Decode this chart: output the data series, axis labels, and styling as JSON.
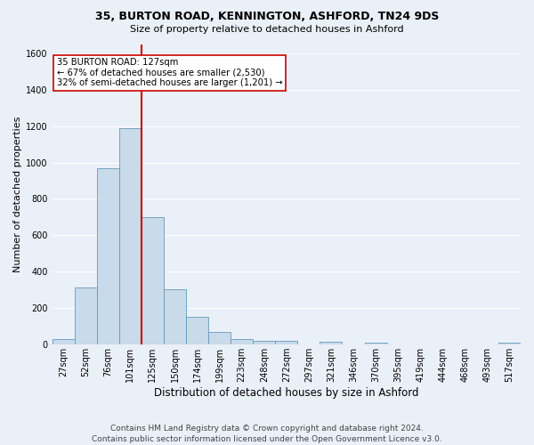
{
  "title1": "35, BURTON ROAD, KENNINGTON, ASHFORD, TN24 9DS",
  "title2": "Size of property relative to detached houses in Ashford",
  "xlabel": "Distribution of detached houses by size in Ashford",
  "ylabel": "Number of detached properties",
  "categories": [
    "27sqm",
    "52sqm",
    "76sqm",
    "101sqm",
    "125sqm",
    "150sqm",
    "174sqm",
    "199sqm",
    "223sqm",
    "248sqm",
    "272sqm",
    "297sqm",
    "321sqm",
    "346sqm",
    "370sqm",
    "395sqm",
    "419sqm",
    "444sqm",
    "468sqm",
    "493sqm",
    "517sqm"
  ],
  "values": [
    30,
    310,
    970,
    1190,
    700,
    300,
    150,
    65,
    30,
    20,
    20,
    0,
    15,
    0,
    10,
    0,
    0,
    0,
    0,
    0,
    10
  ],
  "bar_color": "#c9daea",
  "bar_edge_color": "#6699bb",
  "reference_line_color": "#cc0000",
  "annotation_text": "35 BURTON ROAD: 127sqm\n← 67% of detached houses are smaller (2,530)\n32% of semi-detached houses are larger (1,201) →",
  "annotation_box_color": "#ffffff",
  "annotation_box_edge": "#cc0000",
  "ylim": [
    0,
    1650
  ],
  "yticks": [
    0,
    200,
    400,
    600,
    800,
    1000,
    1200,
    1400,
    1600
  ],
  "footer": "Contains HM Land Registry data © Crown copyright and database right 2024.\nContains public sector information licensed under the Open Government Licence v3.0.",
  "bg_color": "#eaf0f8",
  "grid_color": "#ffffff",
  "title1_fontsize": 9,
  "title2_fontsize": 8,
  "ylabel_fontsize": 8,
  "xlabel_fontsize": 8.5,
  "tick_fontsize": 7,
  "footer_fontsize": 6.5
}
